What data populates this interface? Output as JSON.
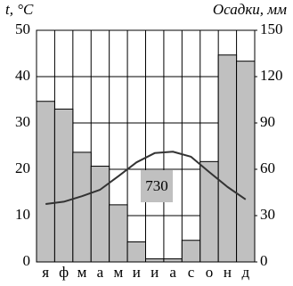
{
  "chart_data": {
    "type": "bar",
    "y_label": "t, °C",
    "y2_label": "Осадки, мм",
    "categories": [
      "я",
      "ф",
      "м",
      "а",
      "м",
      "и",
      "и",
      "а",
      "с",
      "о",
      "н",
      "д"
    ],
    "series": [
      {
        "type": "bar",
        "axis": "y2",
        "color": "#c0c0c0",
        "values": [
          104,
          99,
          71,
          62,
          37,
          13,
          2,
          2,
          14,
          65,
          134,
          130
        ]
      },
      {
        "type": "line",
        "axis": "y",
        "color": "#333333",
        "values": [
          12.5,
          13,
          14.2,
          15.6,
          18.5,
          21.5,
          23.5,
          23.8,
          22.7,
          19.4,
          16.2,
          13.5
        ]
      }
    ],
    "ylim": [
      0,
      50
    ],
    "yticks": [
      0,
      10,
      20,
      30,
      40,
      50
    ],
    "y2lim": [
      0,
      150
    ],
    "y2ticks": [
      0,
      30,
      60,
      90,
      120,
      150
    ],
    "annotation": 730,
    "grid": true
  }
}
